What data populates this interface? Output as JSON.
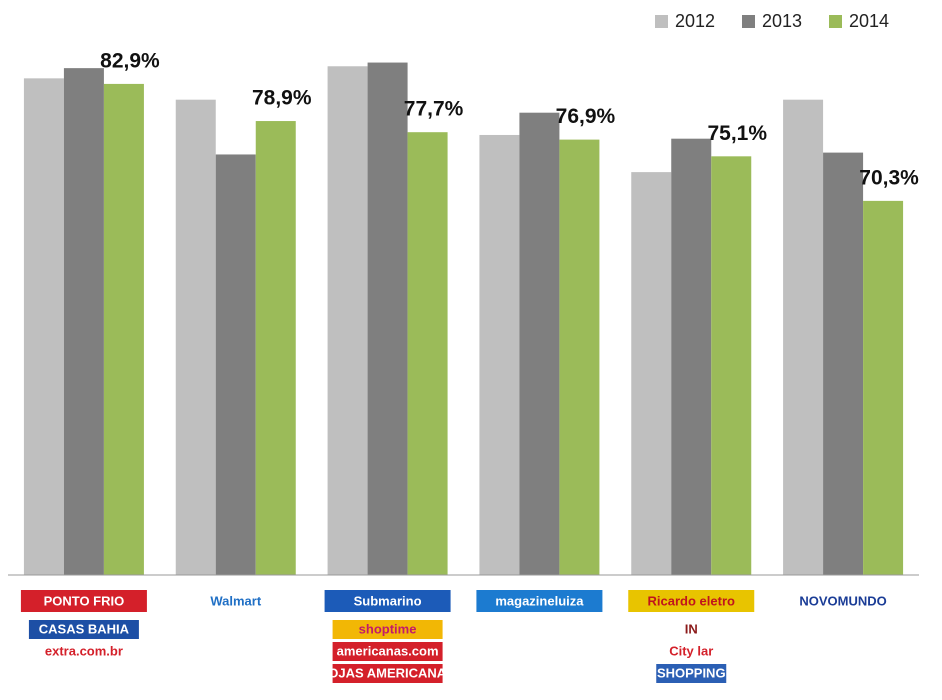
{
  "chart_data": {
    "type": "bar",
    "categories": [
      "PONTO FRIO",
      "Walmart",
      "Submarino",
      "magazineluiza",
      "Ricardo eletro",
      "NOVOMUNDO"
    ],
    "logo_extras": [
      [
        "CASAS BAHIA",
        "extra.com.br"
      ],
      [],
      [
        "shoptime",
        "americanas.com",
        "LOJAS AMERICANAS"
      ],
      [],
      [
        "IN",
        "City lar",
        "SHOPPING"
      ],
      []
    ],
    "series": [
      {
        "name": "2012",
        "color": "#bfbfbf",
        "values": [
          83.5,
          81.2,
          84.8,
          77.4,
          73.4,
          81.2
        ]
      },
      {
        "name": "2013",
        "color": "#7f7f7f",
        "values": [
          84.6,
          75.3,
          85.2,
          79.8,
          77.0,
          75.5
        ]
      },
      {
        "name": "2014",
        "color": "#9bbb59",
        "values": [
          82.9,
          78.9,
          77.7,
          76.9,
          75.1,
          70.3
        ],
        "value_labels": [
          "82,9%",
          "78,9%",
          "77,7%",
          "76,9%",
          "75,1%",
          "70,3%"
        ]
      }
    ],
    "ylim": [
      30,
      90
    ],
    "legend": "top-right"
  }
}
